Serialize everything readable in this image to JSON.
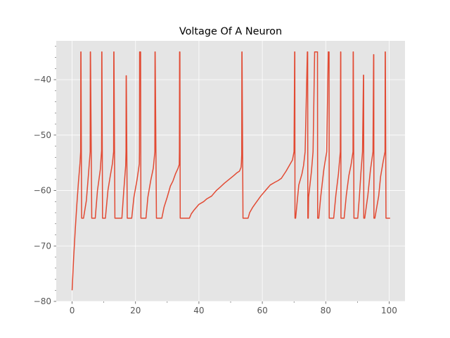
{
  "chart_data": {
    "type": "line",
    "title": "Voltage Of A Neuron",
    "xlabel": "",
    "ylabel": "",
    "xlim": [
      -5,
      105
    ],
    "ylim": [
      -80,
      -33
    ],
    "grid": true,
    "x_ticks": [
      0,
      20,
      40,
      60,
      80,
      100
    ],
    "x_tick_labels": [
      "0",
      "20",
      "40",
      "60",
      "80",
      "100"
    ],
    "y_ticks": [
      -80,
      -70,
      -60,
      -50,
      -40
    ],
    "y_tick_labels": [
      "−80",
      "−70",
      "−60",
      "−50",
      "−40"
    ],
    "colors": {
      "line": "#e24a33",
      "plot_bg": "#e5e5e5",
      "grid": "#ffffff",
      "tick_text": "#555555"
    },
    "series": [
      {
        "x": [
          0,
          0.5,
          1,
          1.5,
          2,
          2.5,
          2.7,
          2.75,
          2.8,
          3.0,
          3.1,
          3.6,
          4.5,
          5.2,
          5.7,
          5.75,
          5.8,
          6.2,
          6.3,
          6.6,
          7.3,
          8.0,
          8.9,
          9.3,
          9.35,
          9.4,
          9.6,
          9.7,
          10,
          10.5,
          11.3,
          12.0,
          12.7,
          13.1,
          13.15,
          13.2,
          13.5,
          13.6,
          14,
          14.8,
          15.7,
          16.3,
          16.9,
          17.0,
          17.05,
          17.1,
          17.4,
          17.5,
          18.8,
          19.5,
          20.5,
          21.2,
          21.25,
          21.3,
          21.6,
          21.7,
          22.0,
          22.7,
          23.3,
          23.9,
          24.8,
          25.6,
          26.1,
          26.15,
          26.2,
          26.6,
          26.8,
          28.3,
          29.0,
          30.0,
          31.0,
          31.8,
          32.6,
          33.4,
          33.8,
          33.85,
          33.9,
          34.0,
          34.1,
          36.3,
          37.0,
          37.6,
          38.5,
          40.0,
          41.5,
          42.5,
          44.0,
          45.5,
          46.5,
          48.0,
          49.5,
          51.0,
          52.0,
          52.8,
          53.3,
          53.4,
          53.5,
          53.55,
          53.6,
          53.9,
          54.0,
          55.5,
          56.0,
          57.0,
          58.0,
          59.5,
          61.0,
          62.5,
          64.0,
          65.0,
          66.0,
          67.5,
          68.5,
          69.5,
          70.0,
          70.2,
          70.25,
          70.3,
          70.4,
          70.5,
          71.5,
          72.5,
          73.0,
          73.5,
          74.2,
          74.3,
          74.35,
          74.4,
          74.5,
          74.6,
          75.5,
          76.0,
          76.5,
          77.4,
          77.45,
          77.5,
          77.7,
          77.8,
          78.4,
          79.4,
          80.3,
          80.8,
          81.05,
          81.1,
          81.2,
          81.3,
          82.5,
          83.2,
          84.0,
          84.6,
          84.7,
          84.75,
          84.8,
          85.0,
          85.1,
          85.8,
          86.5,
          87.3,
          88.0,
          88.6,
          88.65,
          88.7,
          88.9,
          89.0,
          90.1,
          90.6,
          91.1,
          91.6,
          91.9,
          91.95,
          92.0,
          92.2,
          92.3,
          93.3,
          94.1,
          94.9,
          95.1,
          95.15,
          95.2,
          95.4,
          95.5,
          96.7,
          97.3,
          98.1,
          98.7,
          98.75,
          98.8,
          99.0,
          99.1,
          100,
          100.3
        ],
        "y": [
          -78,
          -72,
          -67,
          -62.5,
          -58.5,
          -55,
          -53,
          -35,
          -35,
          -65,
          -65,
          -65,
          -61.8,
          -56.8,
          -53,
          -35,
          -35,
          -65,
          -65,
          -65,
          -65,
          -60,
          -56.2,
          -52.8,
          -35,
          -35,
          -65,
          -65,
          -65,
          -65,
          -60,
          -57.5,
          -55.2,
          -53,
          -35,
          -35,
          -65,
          -65,
          -65,
          -65,
          -65,
          -60,
          -55.5,
          -53,
          -39.3,
          -39.3,
          -65,
          -65,
          -65,
          -61.2,
          -58,
          -55.2,
          -53,
          -35,
          -35,
          -65,
          -65,
          -65,
          -65,
          -61.2,
          -58.2,
          -56,
          -53,
          -35,
          -35,
          -65,
          -65,
          -65,
          -63,
          -61.2,
          -59.2,
          -58.3,
          -57,
          -56,
          -55.3,
          -53,
          -35,
          -35,
          -65,
          -65,
          -65,
          -64.2,
          -63.5,
          -62.5,
          -62,
          -61.5,
          -61,
          -60,
          -59.5,
          -58.7,
          -58,
          -57.3,
          -56.8,
          -56.5,
          -55.8,
          -55,
          -53.5,
          -35,
          -35,
          -65,
          -65,
          -65,
          -64,
          -63,
          -62.2,
          -61,
          -60,
          -59,
          -58.5,
          -58.2,
          -57.8,
          -56.5,
          -55.5,
          -54.5,
          -53,
          -35,
          -35,
          -65,
          -65,
          -65,
          -59,
          -57,
          -55.5,
          -53,
          -35,
          -35,
          -65,
          -65,
          -65,
          -61.2,
          -56.5,
          -53,
          -35,
          -35,
          -65,
          -65,
          -65,
          -65,
          -61.2,
          -56.2,
          -53,
          -35,
          -35,
          -65,
          -65,
          -65,
          -65,
          -60.8,
          -57,
          -53,
          -35,
          -35,
          -65,
          -65,
          -65,
          -65,
          -60.8,
          -57.3,
          -55.3,
          -53,
          -35,
          -35,
          -65,
          -65,
          -65,
          -61.2,
          -56.8,
          -53,
          -39.2,
          -39.2,
          -65,
          -65,
          -65,
          -60.8,
          -56.3,
          -53,
          -35.5,
          -35.5,
          -65,
          -65,
          -65,
          -61,
          -57.5,
          -54.8,
          -53,
          -35,
          -35,
          -65,
          -65,
          -65,
          -65
        ]
      }
    ]
  }
}
